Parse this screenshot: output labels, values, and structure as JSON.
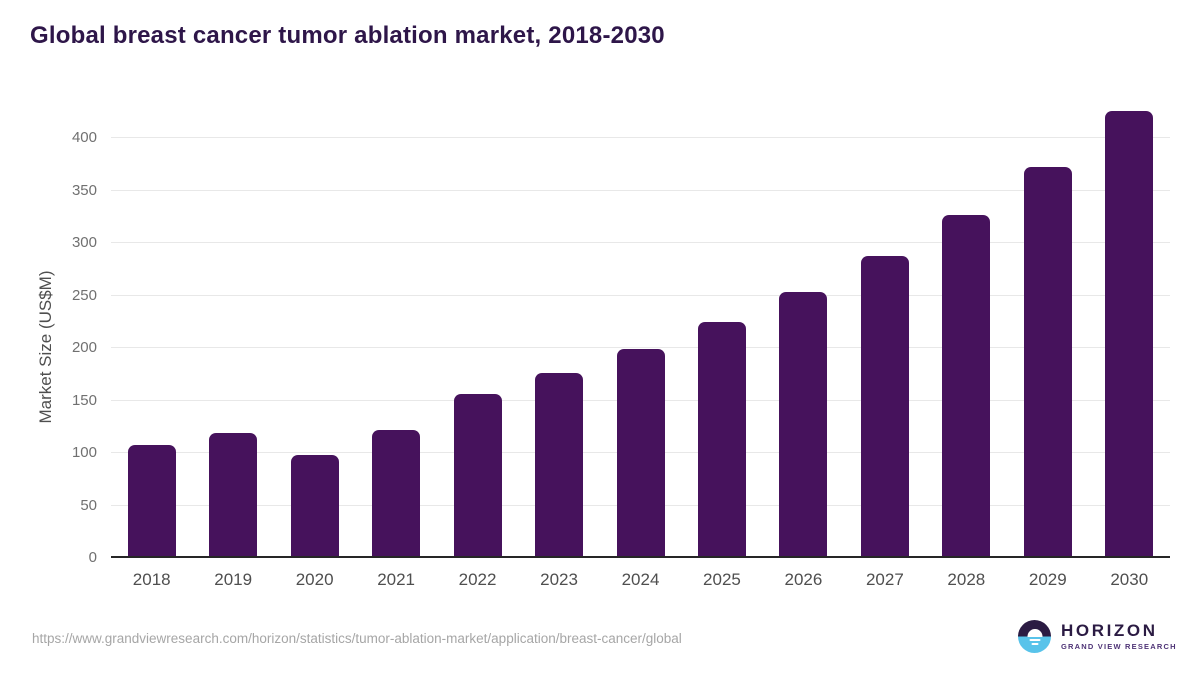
{
  "title": "Global breast cancer tumor ablation market, 2018-2030",
  "chart_data": {
    "type": "bar",
    "title": "Global breast cancer tumor ablation market, 2018-2030",
    "xlabel": "",
    "ylabel": "Market Size (US$M)",
    "categories": [
      "2018",
      "2019",
      "2020",
      "2021",
      "2022",
      "2023",
      "2024",
      "2025",
      "2026",
      "2027",
      "2028",
      "2029",
      "2030"
    ],
    "values": [
      107,
      118,
      97,
      121,
      155,
      175,
      198,
      224,
      253,
      287,
      326,
      372,
      425
    ],
    "y_ticks": [
      0,
      50,
      100,
      150,
      200,
      250,
      300,
      350,
      400
    ],
    "ylim": [
      0,
      435
    ],
    "grid": "horizontal",
    "legend": "none",
    "bar_color": "#46125c"
  },
  "footer": {
    "source_url": "https://www.grandviewresearch.com/horizon/statistics/tumor-ablation-market/application/breast-cancer/global",
    "logo": {
      "brand": "HORIZON",
      "sub": "GRAND VIEW RESEARCH"
    }
  },
  "colors": {
    "bar": "#46125c",
    "title": "#2e1649",
    "axis_line": "#262626",
    "gridline": "#e8e8e8",
    "tick_text": "#707070",
    "xlabel_text": "#4f4f4f",
    "url_text": "#a6a6a6",
    "logo_dark": "#2b1b43",
    "logo_blue": "#58c3ea",
    "logo_sub": "#4e3376"
  }
}
